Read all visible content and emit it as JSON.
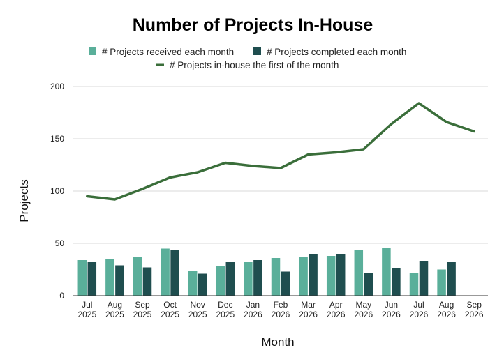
{
  "chart_data": {
    "type": "bar",
    "title": "Number of Projects In-House",
    "xlabel": "Month",
    "ylabel": "Projects",
    "ylim": [
      0,
      200
    ],
    "yticks": [
      0,
      50,
      100,
      150,
      200
    ],
    "grid": true,
    "legend_position": "top",
    "categories": [
      [
        "Jul",
        "2025"
      ],
      [
        "Aug",
        "2025"
      ],
      [
        "Sep",
        "2025"
      ],
      [
        "Oct",
        "2025"
      ],
      [
        "Nov",
        "2025"
      ],
      [
        "Dec",
        "2025"
      ],
      [
        "Jan",
        "2026"
      ],
      [
        "Feb",
        "2026"
      ],
      [
        "Mar",
        "2026"
      ],
      [
        "Apr",
        "2026"
      ],
      [
        "May",
        "2026"
      ],
      [
        "Jun",
        "2026"
      ],
      [
        "Jul",
        "2026"
      ],
      [
        "Aug",
        "2026"
      ],
      [
        "Sep",
        "2026"
      ]
    ],
    "series": [
      {
        "name": "# Projects received each month",
        "type": "bar",
        "color": "#5aaf9a",
        "values": [
          34,
          35,
          37,
          45,
          24,
          28,
          32,
          36,
          37,
          38,
          44,
          46,
          22,
          25,
          null
        ]
      },
      {
        "name": "# Projects completed each month",
        "type": "bar",
        "color": "#1f4e4f",
        "values": [
          32,
          29,
          27,
          44,
          21,
          32,
          34,
          23,
          40,
          40,
          22,
          26,
          33,
          32,
          null
        ]
      },
      {
        "name": "# Projects in-house the first of the month",
        "type": "line",
        "color": "#3a6e3a",
        "values": [
          95,
          92,
          102,
          113,
          118,
          127,
          124,
          122,
          135,
          137,
          140,
          164,
          184,
          166,
          157
        ]
      }
    ]
  }
}
